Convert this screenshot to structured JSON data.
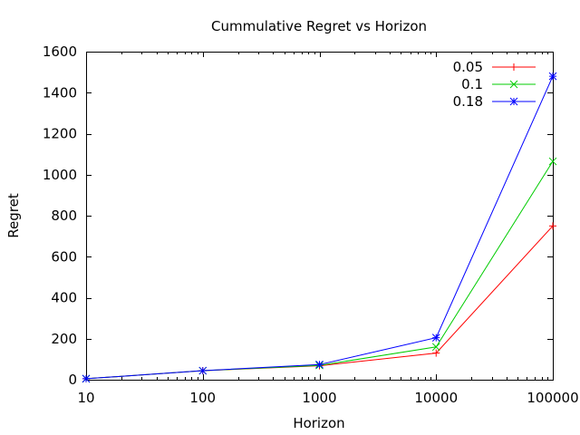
{
  "chart_data": {
    "type": "line",
    "title": "Cummulative Regret vs Horizon",
    "xlabel": "Horizon",
    "ylabel": "Regret",
    "x_scale": "log",
    "x": [
      10,
      100,
      1000,
      10000,
      100000
    ],
    "x_tick_labels": [
      "10",
      "100",
      "1000",
      "10000",
      "100000"
    ],
    "ylim": [
      0,
      1600
    ],
    "y_ticks": [
      0,
      200,
      400,
      600,
      800,
      1000,
      1200,
      1400,
      1600
    ],
    "y_tick_labels": [
      "0",
      "200",
      "400",
      "600",
      "800",
      "1000",
      "1200",
      "1400",
      "1600"
    ],
    "legend_position": "top-right",
    "grid": false,
    "series": [
      {
        "name": "0.05",
        "color": "#ff0000",
        "marker": "plus",
        "values": [
          5,
          44,
          68,
          130,
          750
        ]
      },
      {
        "name": "0.1",
        "color": "#00cc00",
        "marker": "cross",
        "values": [
          5,
          44,
          70,
          160,
          1065
        ]
      },
      {
        "name": "0.18",
        "color": "#0000ff",
        "marker": "star",
        "values": [
          5,
          44,
          74,
          205,
          1480
        ]
      }
    ]
  }
}
